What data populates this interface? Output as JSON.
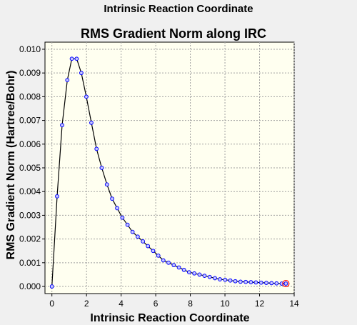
{
  "window": {
    "title": "Intrinsic Reaction Coordinate"
  },
  "colors": {
    "plot_bg": "#fffff0",
    "grid": "#a0a0a0",
    "line": "#000000",
    "marker": "#0000ff",
    "marker_fill": "#c8c8ff",
    "last_marker": "#ff0000"
  },
  "chart_data": {
    "type": "line",
    "title": "RMS Gradient Norm along IRC",
    "xlabel": "Intrinsic Reaction Coordinate",
    "ylabel": "RMS Gradient Norm (Hartree/Bohr)",
    "xlim": [
      -0.4,
      14.0
    ],
    "ylim": [
      -0.0003,
      0.0103
    ],
    "xticks": [
      0,
      2,
      4,
      6,
      8,
      10,
      12,
      14
    ],
    "yticks": [
      0.0,
      0.001,
      0.002,
      0.003,
      0.004,
      0.005,
      0.006,
      0.007,
      0.008,
      0.009,
      0.01
    ],
    "grid": true,
    "series": [
      {
        "x": [
          0.0,
          0.3,
          0.59,
          0.89,
          1.15,
          1.43,
          1.7,
          1.99,
          2.28,
          2.58,
          2.88,
          3.18,
          3.48,
          3.77,
          4.07,
          4.37,
          4.66,
          4.96,
          5.26,
          5.55,
          5.85,
          6.15,
          6.44,
          6.74,
          7.04,
          7.34,
          7.63,
          7.93,
          8.23,
          8.53,
          8.82,
          9.12,
          9.42,
          9.71,
          10.01,
          10.31,
          10.6,
          10.9,
          11.2,
          11.5,
          11.79,
          12.09,
          12.39,
          12.69,
          12.98,
          13.28,
          13.52
        ],
        "y": [
          0.0,
          0.0038,
          0.0068,
          0.0087,
          0.0096,
          0.0096,
          0.009,
          0.008,
          0.0069,
          0.0058,
          0.005,
          0.0043,
          0.0037,
          0.0033,
          0.0029,
          0.0026,
          0.0023,
          0.0021,
          0.0019,
          0.0017,
          0.0015,
          0.0013,
          0.0011,
          0.001,
          0.0009,
          0.0008,
          0.0007,
          0.0006,
          0.00055,
          0.0005,
          0.00045,
          0.0004,
          0.00035,
          0.0003,
          0.00028,
          0.00025,
          0.00022,
          0.0002,
          0.00019,
          0.00018,
          0.00017,
          0.00016,
          0.00015,
          0.00014,
          0.00013,
          0.00012,
          0.00012
        ]
      }
    ]
  }
}
